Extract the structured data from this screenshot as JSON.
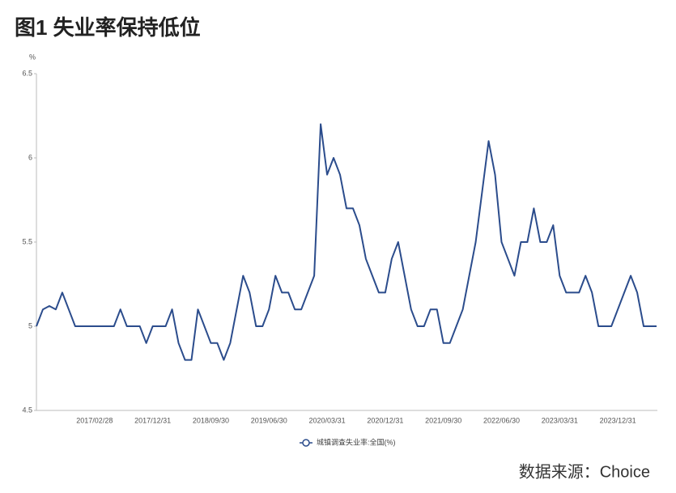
{
  "chart_data": {
    "type": "line",
    "title": "图1  失业率保持低位",
    "y_unit": "%",
    "source": "数据来源：Choice",
    "categories": [
      null,
      null,
      null,
      null,
      null,
      null,
      null,
      null,
      null,
      "2017/02/28",
      null,
      null,
      null,
      null,
      null,
      null,
      null,
      null,
      "2017/12/31",
      null,
      null,
      null,
      null,
      null,
      null,
      null,
      null,
      "2018/09/30",
      null,
      null,
      null,
      null,
      null,
      null,
      null,
      null,
      "2019/06/30",
      null,
      null,
      null,
      null,
      null,
      null,
      null,
      null,
      "2020/03/31",
      null,
      null,
      null,
      null,
      null,
      null,
      null,
      null,
      "2020/12/31",
      null,
      null,
      null,
      null,
      null,
      null,
      null,
      null,
      "2021/09/30",
      null,
      null,
      null,
      null,
      null,
      null,
      null,
      null,
      "2022/06/30",
      null,
      null,
      null,
      null,
      null,
      null,
      null,
      null,
      "2023/03/31",
      null,
      null,
      null,
      null,
      null,
      null,
      null,
      null,
      "2023/12/31",
      null,
      null,
      null,
      null,
      null,
      null
    ],
    "series": [
      {
        "name": "城镇调查失业率:全国(%)",
        "color": "#2b4c8c",
        "values": [
          5.0,
          5.1,
          5.12,
          5.1,
          5.2,
          5.1,
          5.0,
          5.0,
          5.0,
          5.0,
          5.0,
          5.0,
          5.0,
          5.1,
          5.0,
          5.0,
          5.0,
          4.9,
          5.0,
          5.0,
          5.0,
          5.1,
          4.9,
          4.8,
          4.8,
          5.1,
          5.0,
          4.9,
          4.9,
          4.8,
          4.9,
          5.1,
          5.3,
          5.2,
          5.0,
          5.0,
          5.1,
          5.3,
          5.2,
          5.2,
          5.1,
          5.1,
          5.2,
          5.3,
          6.2,
          5.9,
          6.0,
          5.9,
          5.7,
          5.7,
          5.6,
          5.4,
          5.3,
          5.2,
          5.2,
          5.4,
          5.5,
          5.3,
          5.1,
          5.0,
          5.0,
          5.1,
          5.1,
          4.9,
          4.9,
          5.0,
          5.1,
          5.3,
          5.5,
          5.8,
          6.1,
          5.9,
          5.5,
          5.4,
          5.3,
          5.5,
          5.5,
          5.7,
          5.5,
          5.5,
          5.6,
          5.3,
          5.2,
          5.2,
          5.2,
          5.3,
          5.2,
          5.0,
          5.0,
          5.0,
          5.1,
          5.2,
          5.3,
          5.2,
          5.0,
          5.0,
          5.0
        ]
      }
    ],
    "ylim": [
      4.5,
      6.5
    ],
    "yticks": [
      4.5,
      5,
      5.5,
      6,
      6.5
    ],
    "grid": false
  }
}
